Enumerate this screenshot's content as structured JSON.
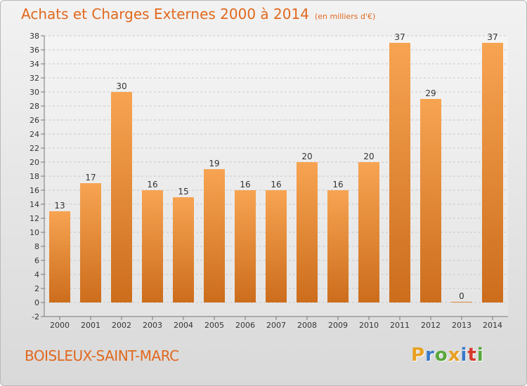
{
  "title": "Achats et Charges Externes 2000 à 2014",
  "unit": "(en milliers d'€)",
  "commune": "BOISLEUX-SAINT-MARC",
  "logo": {
    "letters": [
      "P",
      "r",
      "o",
      "x",
      "i",
      "t",
      "i"
    ],
    "colors": [
      "#e8a020",
      "#3a78c8",
      "#58a83c",
      "#e8a020",
      "#3a78c8",
      "#d8382c",
      "#58a83c"
    ]
  },
  "colors": {
    "accent": "#e1681d",
    "bar_light": "#f7a452",
    "bar_dark": "#cc6d1c"
  },
  "chart_data": {
    "type": "bar",
    "categories": [
      "2000",
      "2001",
      "2002",
      "2003",
      "2004",
      "2005",
      "2006",
      "2007",
      "2008",
      "2009",
      "2010",
      "2011",
      "2012",
      "2013",
      "2014"
    ],
    "values": [
      13,
      17,
      30,
      16,
      15,
      19,
      16,
      16,
      20,
      16,
      20,
      37,
      29,
      0,
      37
    ],
    "ylim": [
      -2,
      38
    ],
    "yticks": [
      -2,
      0,
      2,
      4,
      6,
      8,
      10,
      12,
      14,
      16,
      18,
      20,
      22,
      24,
      26,
      28,
      30,
      32,
      34,
      36,
      38
    ],
    "grid": true
  }
}
